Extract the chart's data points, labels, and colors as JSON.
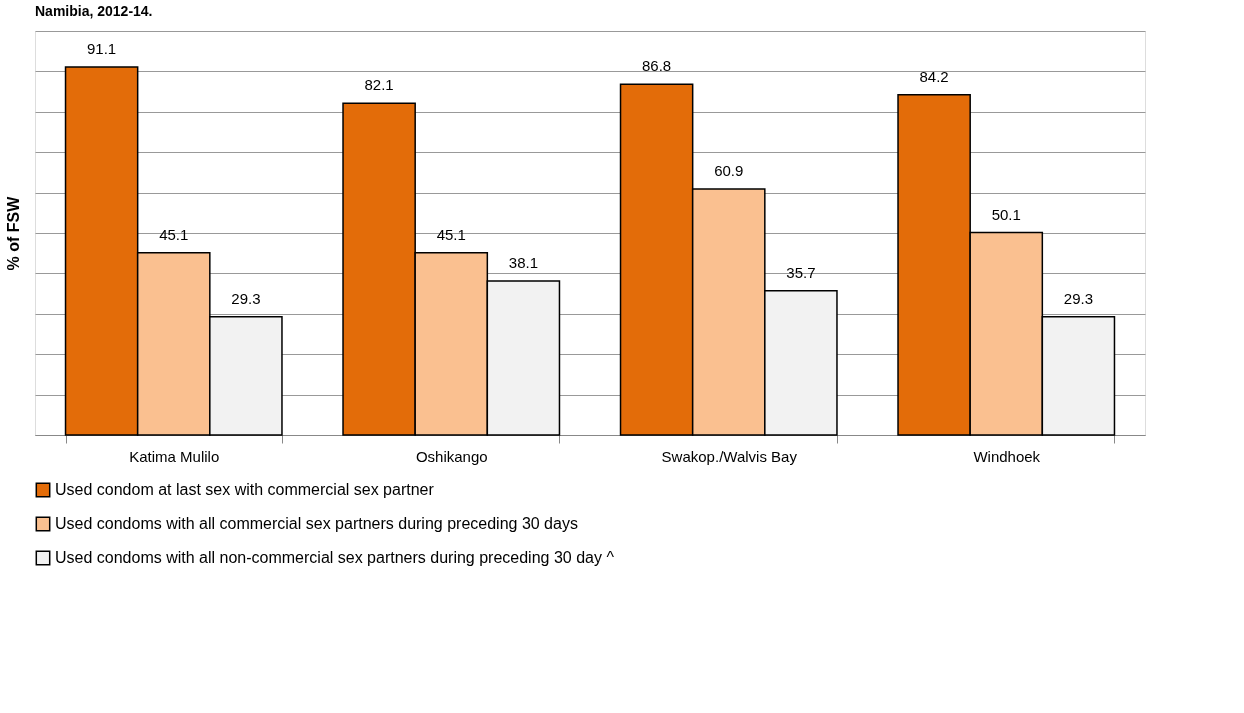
{
  "chart_data": {
    "type": "bar",
    "title": "Namibia, 2012-14.",
    "ylabel": "% of FSW",
    "categories": [
      "Katima Mulilo",
      "Oshikango",
      "Swakop./Walvis Bay",
      "Windhoek"
    ],
    "series": [
      {
        "name": "Used condom at last sex with commercial sex partner",
        "color": "#e36c09",
        "values": [
          91.1,
          82.1,
          86.8,
          84.2
        ]
      },
      {
        "name": "Used condoms with all commercial sex partners during preceding 30 days",
        "color": "#fac090",
        "values": [
          45.1,
          45.1,
          60.9,
          50.1
        ]
      },
      {
        "name": "Used condoms with all non-commercial sex partners during preceding 30 day ^",
        "color": "#f2f2f2",
        "values": [
          29.3,
          38.1,
          35.7,
          29.3
        ]
      }
    ],
    "ylim": [
      0,
      100
    ],
    "yticks": [
      {
        "value": 0,
        "label": null
      },
      {
        "value": 10,
        "label": null
      },
      {
        "value": 20,
        "label": null
      },
      {
        "value": 30,
        "label": null
      },
      {
        "value": 40,
        "label": null
      },
      {
        "value": 50,
        "label": null
      },
      {
        "value": 60,
        "label": null
      },
      {
        "value": 70,
        "label": null
      },
      {
        "value": 80,
        "label": null
      },
      {
        "value": 90,
        "label": null
      },
      {
        "value": 100,
        "label": null
      }
    ],
    "tick_labels": "x",
    "grid": "y",
    "legend": "bottom",
    "data_labels": true
  }
}
